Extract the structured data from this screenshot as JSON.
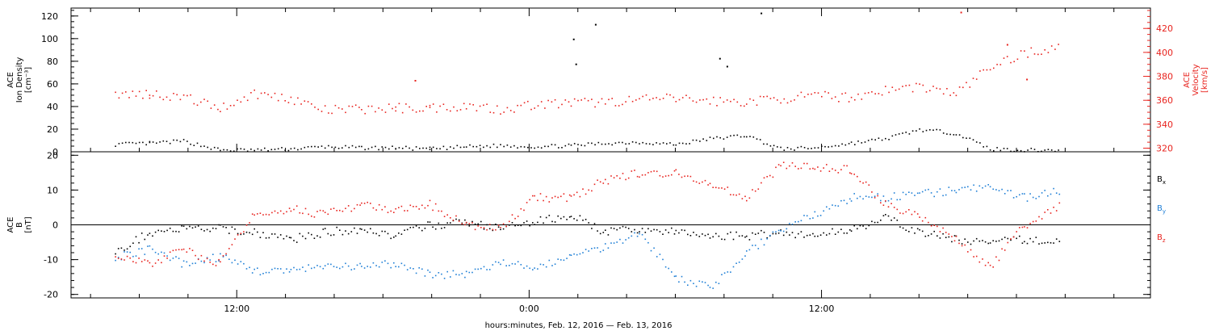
{
  "colors": {
    "black": "#000000",
    "red": "#e8231e",
    "blue": "#1f7fd6"
  },
  "chart_data": [
    {
      "type": "scatter",
      "panel": "top",
      "ylabel_left": [
        "ACE",
        "Ion Density",
        "[cm⁻³]"
      ],
      "ylabel_right": [
        "ACE",
        "Velocity",
        "[km/s]"
      ],
      "ylim_left": [
        0,
        127
      ],
      "ylim_right": [
        317,
        437
      ],
      "left_ticks": [
        0,
        20,
        40,
        60,
        80,
        100,
        120
      ],
      "right_ticks": [
        320,
        340,
        360,
        380,
        400,
        420
      ],
      "series": [
        {
          "axis": "left",
          "color": "black",
          "x": [
            -5.0,
            -3.6,
            -2.2,
            -0.7,
            0.7,
            2.2,
            3.6,
            5.1,
            6.5,
            7.9,
            9.4,
            10.8,
            12.2,
            13.7,
            15.1,
            16.5,
            18.0,
            19.4,
            20.9,
            22.3,
            23.7,
            25.2,
            26.6,
            28.0,
            29.5,
            30.9,
            32.3,
            33.8
          ],
          "y": [
            7,
            8,
            10,
            2,
            2,
            3,
            5,
            4,
            4,
            3,
            5,
            6,
            5,
            6,
            8,
            9,
            7,
            12,
            15,
            3,
            4,
            8,
            12,
            20,
            17,
            3,
            2,
            2
          ],
          "outliers": [
            [
              13.8,
              100
            ],
            [
              13.9,
              78
            ],
            [
              14.7,
              113
            ],
            [
              21.5,
              123
            ],
            [
              19.8,
              83
            ],
            [
              20.1,
              76
            ]
          ]
        },
        {
          "axis": "right",
          "color": "red",
          "x": [
            -5.0,
            -3.6,
            -2.2,
            -0.7,
            0.7,
            2.2,
            3.6,
            5.1,
            6.5,
            7.9,
            9.4,
            10.8,
            12.2,
            13.7,
            15.1,
            16.5,
            18.0,
            19.4,
            20.9,
            22.3,
            23.7,
            25.2,
            26.6,
            28.0,
            29.5,
            30.9,
            32.3,
            33.8
          ],
          "y": [
            365,
            366,
            363,
            354,
            366,
            362,
            352,
            353,
            354,
            354,
            356,
            353,
            357,
            358,
            359,
            361,
            362,
            360,
            359,
            362,
            364,
            363,
            369,
            372,
            366,
            388,
            400,
            405
          ],
          "outliers": [
            [
              7.3,
              377
            ],
            [
              29.7,
              434
            ],
            [
              31.6,
              407
            ],
            [
              32.4,
              378
            ]
          ]
        }
      ]
    },
    {
      "type": "scatter",
      "panel": "bottom",
      "ylabel": [
        "ACE",
        "B",
        "[nT]"
      ],
      "ylim": [
        -21,
        21
      ],
      "ticks": [
        -20,
        -10,
        0,
        10,
        20
      ],
      "legend": [
        "Bx",
        "By",
        "Bz"
      ],
      "series": [
        {
          "name": "Bx",
          "color": "black",
          "x": [
            -5.0,
            -3.6,
            -2.2,
            -0.7,
            0.7,
            2.2,
            3.6,
            5.1,
            6.5,
            7.9,
            9.4,
            10.8,
            12.2,
            13.7,
            15.1,
            16.5,
            18.0,
            19.4,
            20.9,
            22.3,
            23.7,
            25.2,
            26.6,
            28.0,
            29.5,
            30.9,
            32.3,
            33.8
          ],
          "y": [
            -8,
            -2,
            -1,
            -1,
            -2,
            -4,
            -2,
            -1,
            -3,
            0,
            1,
            -1,
            1,
            3,
            -2,
            -1,
            -2,
            -3,
            -3,
            -2,
            -3,
            -1,
            2,
            -2,
            -4,
            -5,
            -4,
            -5
          ]
        },
        {
          "name": "By",
          "color": "blue",
          "x": [
            -5.0,
            -3.6,
            -2.2,
            -0.7,
            0.7,
            2.2,
            3.6,
            5.1,
            6.5,
            7.9,
            9.4,
            10.8,
            12.2,
            13.7,
            15.1,
            16.5,
            18.0,
            19.4,
            20.9,
            22.3,
            23.7,
            25.2,
            26.6,
            28.0,
            29.5,
            30.9,
            32.3,
            33.8
          ],
          "y": [
            -9,
            -7,
            -11,
            -9,
            -13,
            -13,
            -12,
            -12,
            -11,
            -14,
            -14,
            -11,
            -12,
            -9,
            -6,
            -2,
            -15,
            -18,
            -8,
            -1,
            3,
            8,
            8,
            9,
            10,
            11,
            8,
            10
          ]
        },
        {
          "name": "Bz",
          "color": "red",
          "x": [
            -5.0,
            -3.6,
            -2.2,
            -0.7,
            0.7,
            2.2,
            3.6,
            5.1,
            6.5,
            7.9,
            9.4,
            10.8,
            12.2,
            13.7,
            15.1,
            16.5,
            18.0,
            19.4,
            20.9,
            22.3,
            23.7,
            25.2,
            26.6,
            28.0,
            29.5,
            30.9,
            32.3,
            33.8
          ],
          "y": [
            -9,
            -11,
            -7,
            -11,
            3,
            5,
            3,
            6,
            4,
            6,
            0,
            -1,
            8,
            8,
            13,
            15,
            15,
            12,
            8,
            17,
            17,
            16,
            6,
            3,
            -4,
            -12,
            0,
            6
          ]
        }
      ]
    }
  ],
  "x_axis": {
    "range_hours": [
      -6.8,
      37.5
    ],
    "ticks": [
      {
        "x": 0,
        "label": "12:00"
      },
      {
        "x": 12,
        "label": "0:00"
      },
      {
        "x": 24,
        "label": "12:00"
      }
    ],
    "xlabel": "hours:minutes, Feb. 12, 2016 — Feb. 13, 2016"
  }
}
